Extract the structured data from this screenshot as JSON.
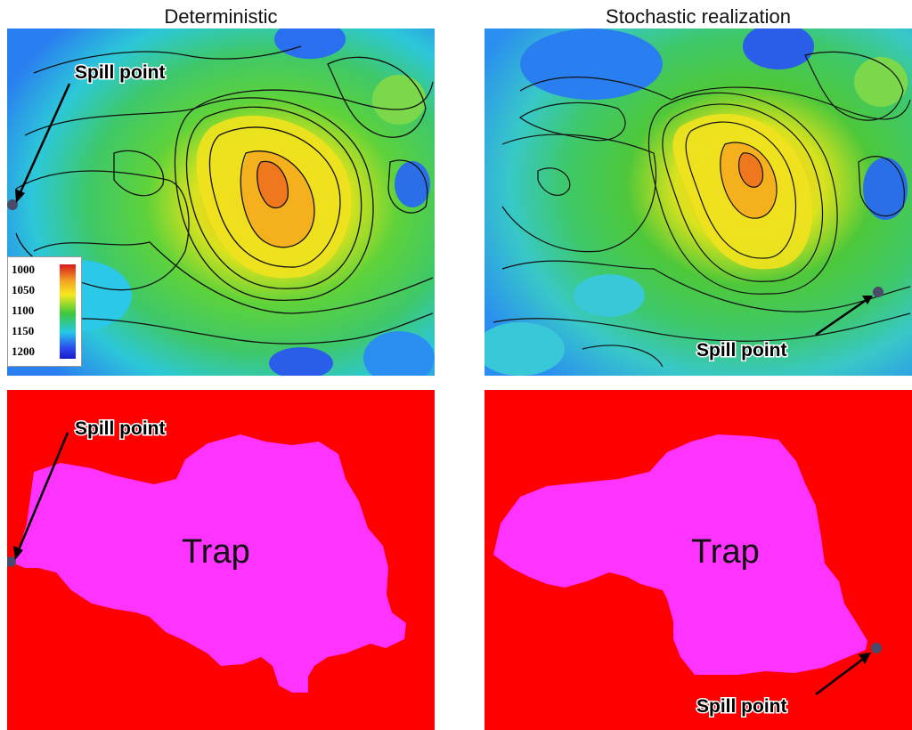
{
  "columns": {
    "left_title": "Deterministic",
    "right_title": "Stochastic realization"
  },
  "labels": {
    "spill_point": "Spill point",
    "trap": "Trap"
  },
  "legend": {
    "ticks": [
      "1000",
      "1050",
      "1100",
      "1150",
      "1200"
    ]
  },
  "colors": {
    "trap_fill": "#ff33ff",
    "background_fill": "#ff0000",
    "spill_dot": "#4a4a6a"
  }
}
